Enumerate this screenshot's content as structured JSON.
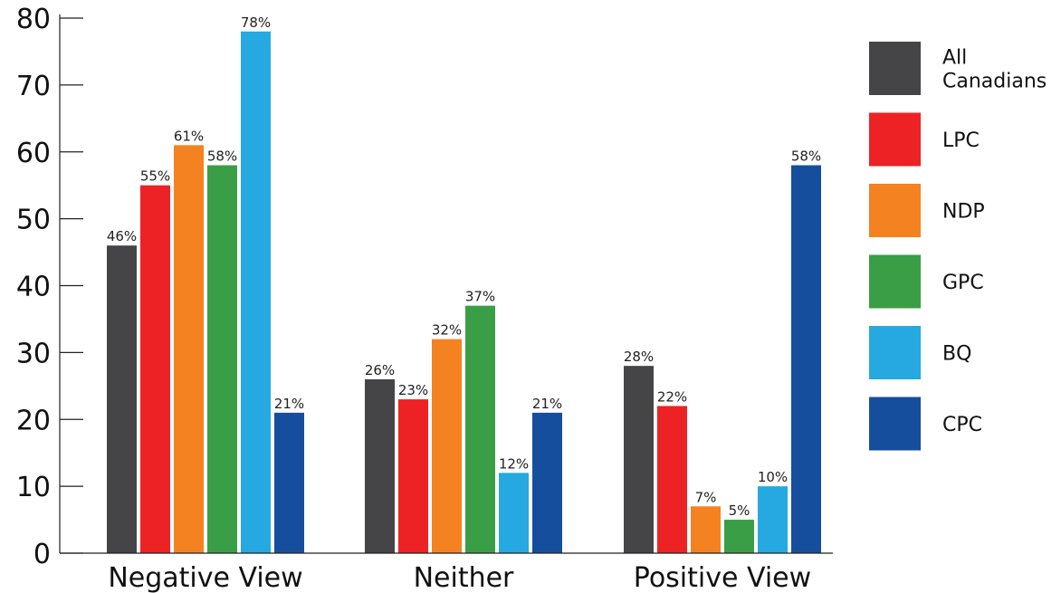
{
  "chart_data": {
    "type": "bar",
    "title": "",
    "xlabel": "",
    "ylabel": "",
    "ylim": [
      0,
      80
    ],
    "yticks": [
      0,
      10,
      20,
      30,
      40,
      50,
      60,
      70,
      80
    ],
    "grid": false,
    "legend_position": "right",
    "value_suffix": "%",
    "categories": [
      "Negative View",
      "Neither",
      "Positive View"
    ],
    "series": [
      {
        "name": "All Canadians",
        "legend_lines": [
          "All",
          "Canadians"
        ],
        "color": "#454547",
        "values": [
          46,
          26,
          28
        ]
      },
      {
        "name": "LPC",
        "legend_lines": [
          "LPC"
        ],
        "color": "#ed2224",
        "values": [
          55,
          23,
          22
        ]
      },
      {
        "name": "NDP",
        "legend_lines": [
          "NDP"
        ],
        "color": "#f58220",
        "values": [
          61,
          32,
          7
        ]
      },
      {
        "name": "GPC",
        "legend_lines": [
          "GPC"
        ],
        "color": "#3a9e47",
        "values": [
          58,
          37,
          5
        ]
      },
      {
        "name": "BQ",
        "legend_lines": [
          "BQ"
        ],
        "color": "#25a9e0",
        "values": [
          78,
          12,
          10
        ]
      },
      {
        "name": "CPC",
        "legend_lines": [
          "CPC"
        ],
        "color": "#164e9e",
        "values": [
          21,
          21,
          58
        ]
      }
    ]
  }
}
